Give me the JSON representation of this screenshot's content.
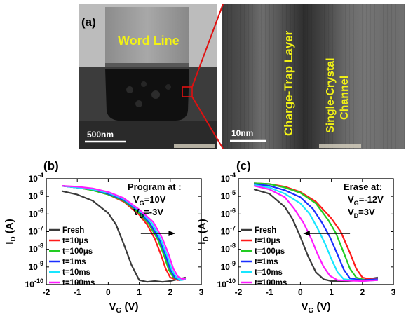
{
  "panel_a": {
    "label": "(a)",
    "left_image": {
      "overlay_text": "Word Line",
      "scale_bar": "500nm"
    },
    "right_image": {
      "layer_text": "Charge-Trap Layer",
      "channel_line1": "Single-Crystal",
      "channel_line2": "Channel",
      "scale_bar": "10nm"
    }
  },
  "colors": {
    "fresh": "#3a3a3a",
    "t10us": "#ff1a1a",
    "t100us": "#22cc22",
    "t1ms": "#1a2fff",
    "t10ms": "#18e6ff",
    "t100ms": "#ff1aff",
    "zoom_line": "#e01010",
    "overlay_text": "#f2f215"
  },
  "chart_data": [
    {
      "type": "line",
      "panel_label": "(b)",
      "xlabel_main": "V",
      "xlabel_sub": "G",
      "xlabel_unit": " (V)",
      "ylabel_main": "I",
      "ylabel_sub": "D",
      "ylabel_unit": " (A)",
      "xlim": [
        -2,
        3
      ],
      "ylim_log10": [
        -10,
        -4
      ],
      "x_ticks": [
        "-2",
        "-1",
        "0",
        "1",
        "2",
        "3"
      ],
      "y_ticks": [
        "10-10",
        "10-9",
        "10-8",
        "10-7",
        "10-6",
        "10-5",
        "10-4"
      ],
      "annotation": {
        "line1": "Program at :",
        "line2": "V",
        "line2_sub": "G",
        "line2_rest": "=10V",
        "line3": "V",
        "line3_sub": "D",
        "line3_rest": "=-3V"
      },
      "legend": [
        "Fresh",
        "t=10μs",
        "t=100μs",
        "t=1ms",
        "t=10ms",
        "t=100ms"
      ],
      "legend_placement": "lower-left",
      "series": [
        {
          "name": "Fresh",
          "color_key": "fresh",
          "x": [
            -1.5,
            -1,
            -0.5,
            0,
            0.25,
            0.5,
            0.75,
            1,
            1.25,
            1.5,
            1.75,
            2,
            2.25,
            2.5
          ],
          "log10_y": [
            -4.7,
            -4.9,
            -5.25,
            -5.95,
            -6.6,
            -7.7,
            -8.9,
            -9.75,
            -9.85,
            -9.8,
            -9.85,
            -9.8,
            -9.7,
            -9.6
          ]
        },
        {
          "name": "t=10μs",
          "color_key": "t10us",
          "x": [
            -1.5,
            -1,
            -0.5,
            0,
            0.5,
            1,
            1.25,
            1.5,
            1.7,
            1.85,
            2,
            2.25,
            2.5
          ],
          "log10_y": [
            -4.4,
            -4.5,
            -4.65,
            -4.9,
            -5.3,
            -6.05,
            -6.6,
            -7.4,
            -8.3,
            -9.1,
            -9.6,
            -9.75,
            -9.7
          ]
        },
        {
          "name": "t=100μs",
          "color_key": "t100us",
          "x": [
            -1.5,
            -1,
            -0.5,
            0,
            0.5,
            1,
            1.3,
            1.6,
            1.8,
            1.95,
            2.1,
            2.3,
            2.5
          ],
          "log10_y": [
            -4.4,
            -4.5,
            -4.65,
            -4.9,
            -5.25,
            -5.95,
            -6.55,
            -7.45,
            -8.35,
            -9.15,
            -9.6,
            -9.75,
            -9.7
          ]
        },
        {
          "name": "t=1ms",
          "color_key": "t1ms",
          "x": [
            -1.5,
            -1,
            -0.5,
            0,
            0.5,
            1,
            1.35,
            1.65,
            1.85,
            2,
            2.15,
            2.3,
            2.5
          ],
          "log10_y": [
            -4.4,
            -4.5,
            -4.6,
            -4.85,
            -5.2,
            -5.85,
            -6.55,
            -7.45,
            -8.35,
            -9.15,
            -9.6,
            -9.75,
            -9.7
          ]
        },
        {
          "name": "t=10ms",
          "color_key": "t10ms",
          "x": [
            -1.5,
            -1,
            -0.5,
            0,
            0.5,
            1,
            1.4,
            1.7,
            1.9,
            2.05,
            2.2,
            2.35,
            2.5
          ],
          "log10_y": [
            -4.4,
            -4.5,
            -4.6,
            -4.8,
            -5.15,
            -5.8,
            -6.5,
            -7.45,
            -8.35,
            -9.15,
            -9.6,
            -9.75,
            -9.7
          ]
        },
        {
          "name": "t=100ms",
          "color_key": "t100ms",
          "x": [
            -1.5,
            -1,
            -0.5,
            0,
            0.5,
            1,
            1.45,
            1.75,
            1.95,
            2.1,
            2.25,
            2.4,
            2.5
          ],
          "log10_y": [
            -4.4,
            -4.45,
            -4.55,
            -4.75,
            -5.1,
            -5.75,
            -6.45,
            -7.4,
            -8.3,
            -9.1,
            -9.55,
            -9.7,
            -9.65
          ]
        }
      ],
      "arrow": {
        "x_from": 1.05,
        "x_to": 2.15,
        "log10_y": -7.1
      }
    },
    {
      "type": "line",
      "panel_label": "(c)",
      "xlabel_main": "V",
      "xlabel_sub": "G",
      "xlabel_unit": " (V)",
      "ylabel_main": "I",
      "ylabel_sub": "D",
      "ylabel_unit": " (A)",
      "xlim": [
        -2,
        3
      ],
      "ylim_log10": [
        -10,
        -4
      ],
      "x_ticks": [
        "-2",
        "-1",
        "0",
        "1",
        "2",
        "3"
      ],
      "y_ticks": [
        "10-10",
        "10-9",
        "10-8",
        "10-7",
        "10-6",
        "10-5",
        "10-4"
      ],
      "annotation": {
        "line1": "Erase at:",
        "line2": "V",
        "line2_sub": "G",
        "line2_rest": "=-12V",
        "line3": "V",
        "line3_sub": "D",
        "line3_rest": "=3V"
      },
      "legend": [
        "Fresh",
        "t=10μs",
        "t=100μs",
        "t=1ms",
        "t=10ms",
        "t=100ms"
      ],
      "legend_placement": "lower-left",
      "series": [
        {
          "name": "Fresh",
          "color_key": "fresh",
          "x": [
            -1.5,
            -1,
            -0.5,
            -0.25,
            0,
            0.25,
            0.5,
            0.75,
            1,
            1.5,
            2,
            2.5
          ],
          "log10_y": [
            -4.6,
            -4.85,
            -5.6,
            -6.3,
            -7.3,
            -8.4,
            -9.3,
            -9.7,
            -9.8,
            -9.8,
            -9.75,
            -9.6
          ]
        },
        {
          "name": "t=10μs",
          "color_key": "t10us",
          "x": [
            -1.5,
            -1,
            -0.5,
            0,
            0.5,
            1,
            1.3,
            1.6,
            1.8,
            2,
            2.25,
            2.5
          ],
          "log10_y": [
            -4.25,
            -4.3,
            -4.45,
            -4.75,
            -5.3,
            -6.25,
            -7.0,
            -8.2,
            -9.1,
            -9.6,
            -9.7,
            -9.65
          ]
        },
        {
          "name": "t=100μs",
          "color_key": "t100us",
          "x": [
            -1.5,
            -1,
            -0.5,
            0,
            0.5,
            0.9,
            1.15,
            1.4,
            1.6,
            1.8,
            2.1,
            2.5
          ],
          "log10_y": [
            -4.25,
            -4.3,
            -4.5,
            -4.8,
            -5.4,
            -6.35,
            -7.1,
            -8.2,
            -9.1,
            -9.6,
            -9.75,
            -9.7
          ]
        },
        {
          "name": "t=1ms",
          "color_key": "t1ms",
          "x": [
            -1.5,
            -1,
            -0.5,
            0,
            0.4,
            0.7,
            0.95,
            1.2,
            1.4,
            1.6,
            2,
            2.5
          ],
          "log10_y": [
            -4.3,
            -4.4,
            -4.65,
            -5.05,
            -5.7,
            -6.5,
            -7.3,
            -8.3,
            -9.15,
            -9.65,
            -9.75,
            -9.7
          ]
        },
        {
          "name": "t=10ms",
          "color_key": "t10ms",
          "x": [
            -1.5,
            -1,
            -0.5,
            0,
            0.3,
            0.55,
            0.8,
            1.0,
            1.2,
            1.4,
            2,
            2.5
          ],
          "log10_y": [
            -4.35,
            -4.5,
            -4.85,
            -5.4,
            -6.0,
            -6.8,
            -7.7,
            -8.55,
            -9.3,
            -9.7,
            -9.8,
            -9.75
          ]
        },
        {
          "name": "t=100ms",
          "color_key": "t100ms",
          "x": [
            -1.5,
            -1,
            -0.5,
            -0.2,
            0.1,
            0.35,
            0.55,
            0.75,
            0.95,
            1.2,
            2,
            2.5
          ],
          "log10_y": [
            -4.4,
            -4.6,
            -5.05,
            -5.7,
            -6.5,
            -7.4,
            -8.25,
            -9.0,
            -9.5,
            -9.75,
            -9.8,
            -9.75
          ]
        }
      ],
      "arrow": {
        "x_from": 1.6,
        "x_to": 0.1,
        "log10_y": -7.1
      }
    }
  ]
}
